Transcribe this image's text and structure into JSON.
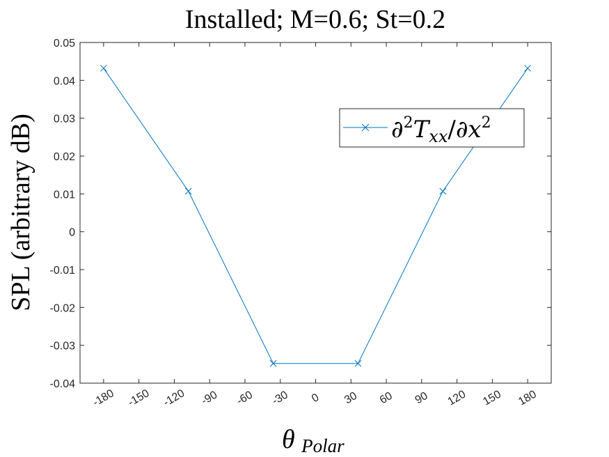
{
  "chart_data": {
    "type": "line",
    "title": "Installed; M=0.6; St=0.2",
    "xlabel": "θ",
    "xlabel_subscript": "Polar",
    "ylabel": "SPL (arbitrary dB)",
    "xlim": [
      -200,
      200
    ],
    "ylim": [
      -0.04,
      0.05
    ],
    "x_ticks": [
      -180,
      -150,
      -120,
      -90,
      -60,
      -30,
      0,
      30,
      60,
      90,
      120,
      150,
      180
    ],
    "x_tick_labels": [
      "-180",
      "-150",
      "-120",
      "-90",
      "-60",
      "-30",
      "0",
      "30",
      "60",
      "90",
      "120",
      "150",
      "180"
    ],
    "y_ticks": [
      -0.04,
      -0.03,
      -0.02,
      -0.01,
      0,
      0.01,
      0.02,
      0.03,
      0.04,
      0.05
    ],
    "y_tick_labels": [
      "-0.04",
      "-0.03",
      "-0.02",
      "-0.01",
      "0",
      "0.01",
      "0.02",
      "0.03",
      "0.04",
      "0.05"
    ],
    "grid": false,
    "legend_position": "upper-right",
    "series": [
      {
        "name": "∂²T_xx/∂x²",
        "color": "#0072BD",
        "marker": "x",
        "x": [
          -180,
          -108,
          -36,
          36,
          108,
          180
        ],
        "y": [
          0.0432,
          0.0107,
          -0.0348,
          -0.0348,
          0.0107,
          0.0432
        ]
      }
    ]
  },
  "legend": {
    "partial": "∂",
    "sup2": "2",
    "T": "T",
    "xx": "xx",
    "slash": "/",
    "x": "x"
  }
}
